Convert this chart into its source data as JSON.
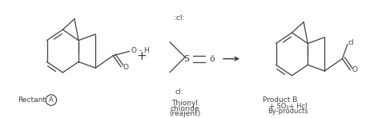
{
  "bg_color": "#ffffff",
  "text_color": "#404040",
  "label_reactant": "Rectant",
  "label_reactant_A": "A",
  "label_reagent_line1": "Thionyl",
  "label_reagent_line2": "chloride",
  "label_reagent_line3": "(reajent)",
  "label_product": "Product B",
  "label_byproducts1": "+ SO₂+ Hcl",
  "label_byproducts2": "By-products",
  "fig_width": 4.62,
  "fig_height": 1.48,
  "dpi": 100
}
